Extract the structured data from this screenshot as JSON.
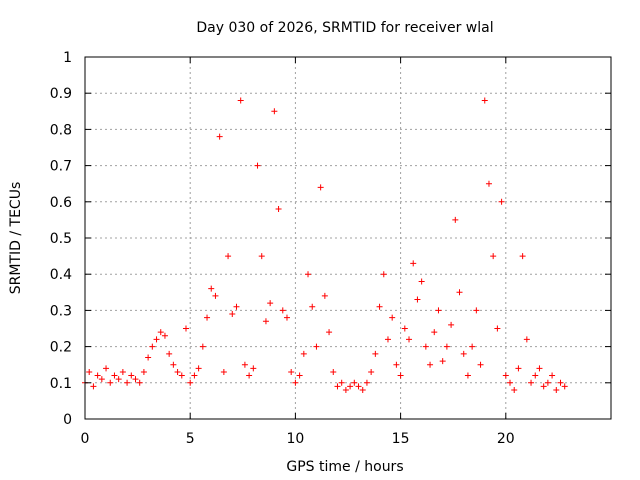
{
  "chart_data": {
    "type": "scatter",
    "title": "Day 030 of 2026, SRMTID for receiver wlal",
    "xlabel": "GPS time / hours",
    "ylabel": "SRMTID / TECUs",
    "xlim": [
      0,
      25
    ],
    "ylim": [
      0,
      1
    ],
    "xticks": [
      0,
      5,
      10,
      15,
      20
    ],
    "yticks": [
      0,
      0.1,
      0.2,
      0.3,
      0.4,
      0.5,
      0.6,
      0.7,
      0.8,
      0.9,
      1
    ],
    "xtick_labels": [
      "0",
      "5",
      "10",
      "15",
      "20"
    ],
    "ytick_labels": [
      "0",
      "0.1",
      "0.2",
      "0.3",
      "0.4",
      "0.5",
      "0.6",
      "0.7",
      "0.8",
      "0.9",
      "1"
    ],
    "grid": true,
    "marker": "+",
    "color": "#ff0000",
    "series": [
      {
        "name": "SRMTID",
        "x": [
          0.0,
          0.2,
          0.4,
          0.6,
          0.8,
          1.0,
          1.2,
          1.4,
          1.6,
          1.8,
          2.0,
          2.2,
          2.4,
          2.6,
          2.8,
          3.0,
          3.2,
          3.4,
          3.6,
          3.8,
          4.0,
          4.2,
          4.4,
          4.6,
          4.8,
          5.0,
          5.2,
          5.4,
          5.6,
          5.8,
          6.0,
          6.2,
          6.4,
          6.6,
          6.8,
          7.0,
          7.2,
          7.4,
          7.6,
          7.8,
          8.0,
          8.2,
          8.4,
          8.6,
          8.8,
          9.0,
          9.2,
          9.4,
          9.6,
          9.8,
          10.0,
          10.2,
          10.4,
          10.6,
          10.8,
          11.0,
          11.2,
          11.4,
          11.6,
          11.8,
          12.0,
          12.2,
          12.4,
          12.6,
          12.8,
          13.0,
          13.2,
          13.4,
          13.6,
          13.8,
          14.0,
          14.2,
          14.4,
          14.6,
          14.8,
          15.0,
          15.2,
          15.4,
          15.6,
          15.8,
          16.0,
          16.2,
          16.4,
          16.6,
          16.8,
          17.0,
          17.2,
          17.4,
          17.6,
          17.8,
          18.0,
          18.2,
          18.4,
          18.6,
          18.8,
          19.0,
          19.2,
          19.4,
          19.6,
          19.8,
          20.0,
          20.2,
          20.4,
          20.6,
          20.8,
          21.0,
          21.2,
          21.4,
          21.6,
          21.8,
          22.0,
          22.2,
          22.4,
          22.6,
          22.8
        ],
        "y": [
          0.1,
          0.13,
          0.09,
          0.12,
          0.11,
          0.14,
          0.1,
          0.12,
          0.11,
          0.13,
          0.1,
          0.12,
          0.11,
          0.1,
          0.13,
          0.17,
          0.2,
          0.22,
          0.24,
          0.23,
          0.18,
          0.15,
          0.13,
          0.12,
          0.25,
          0.1,
          0.12,
          0.14,
          0.2,
          0.28,
          0.36,
          0.34,
          0.78,
          0.13,
          0.45,
          0.29,
          0.31,
          0.88,
          0.15,
          0.12,
          0.14,
          0.7,
          0.45,
          0.27,
          0.32,
          0.85,
          0.58,
          0.3,
          0.28,
          0.13,
          0.1,
          0.12,
          0.18,
          0.4,
          0.31,
          0.2,
          0.64,
          0.34,
          0.24,
          0.13,
          0.09,
          0.1,
          0.08,
          0.09,
          0.1,
          0.09,
          0.08,
          0.1,
          0.13,
          0.18,
          0.31,
          0.4,
          0.22,
          0.28,
          0.15,
          0.12,
          0.25,
          0.22,
          0.43,
          0.33,
          0.38,
          0.2,
          0.15,
          0.24,
          0.3,
          0.16,
          0.2,
          0.26,
          0.55,
          0.35,
          0.18,
          0.12,
          0.2,
          0.3,
          0.15,
          0.88,
          0.65,
          0.45,
          0.25,
          0.6,
          0.12,
          0.1,
          0.08,
          0.14,
          0.45,
          0.22,
          0.1,
          0.12,
          0.14,
          0.09,
          0.1,
          0.12,
          0.08,
          0.1,
          0.09
        ]
      }
    ]
  }
}
